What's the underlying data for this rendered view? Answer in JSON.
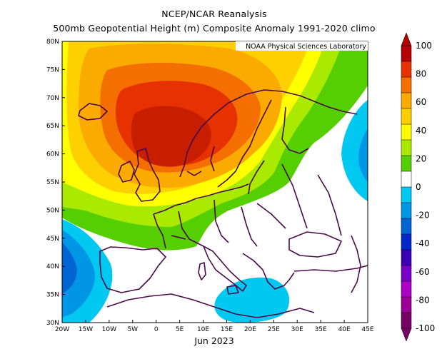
{
  "title_line1": "NCEP/NCAR Reanalysis",
  "title_line2": "500mb Geopotential Height (m) Composite Anomaly 1991-2020 climo",
  "credit": "NOAA Physical Sciences Laboratory",
  "date_label": "Jun 2023",
  "lat_labels": [
    "80N",
    "75N",
    "70N",
    "65N",
    "60N",
    "55N",
    "50N",
    "45N",
    "40N",
    "35N",
    "30N"
  ],
  "lon_labels": [
    "20W",
    "15W",
    "10W",
    "5W",
    "0",
    "5E",
    "10E",
    "15E",
    "20E",
    "25E",
    "30E",
    "35E",
    "40E",
    "45E"
  ],
  "colorbar": {
    "labels": [
      "100",
      "80",
      "60",
      "40",
      "20",
      "0",
      "-20",
      "-40",
      "-60",
      "-80",
      "-100"
    ],
    "colors": [
      "#b40000",
      "#e63200",
      "#f56e00",
      "#fbaa00",
      "#ffd000",
      "#ffff00",
      "#aaea00",
      "#56cf00",
      "#ffffff",
      "#00c8f0",
      "#0096e6",
      "#0064d2",
      "#0028c8",
      "#3c00b4",
      "#7800c8",
      "#aa00c8",
      "#9b0096",
      "#780064"
    ]
  },
  "anomaly_colors": {
    "pos_120": "#c81e00",
    "pos_100": "#e63200",
    "pos_80": "#f56e00",
    "pos_60": "#fbaa00",
    "pos_50": "#ffd000",
    "pos_40": "#ffff00",
    "pos_30": "#aaea00",
    "pos_20": "#56cf00",
    "neg_20": "#00c8f0",
    "neg_30": "#0096e6",
    "neg_40": "#0064d2",
    "coast": "#4a0a4a"
  }
}
